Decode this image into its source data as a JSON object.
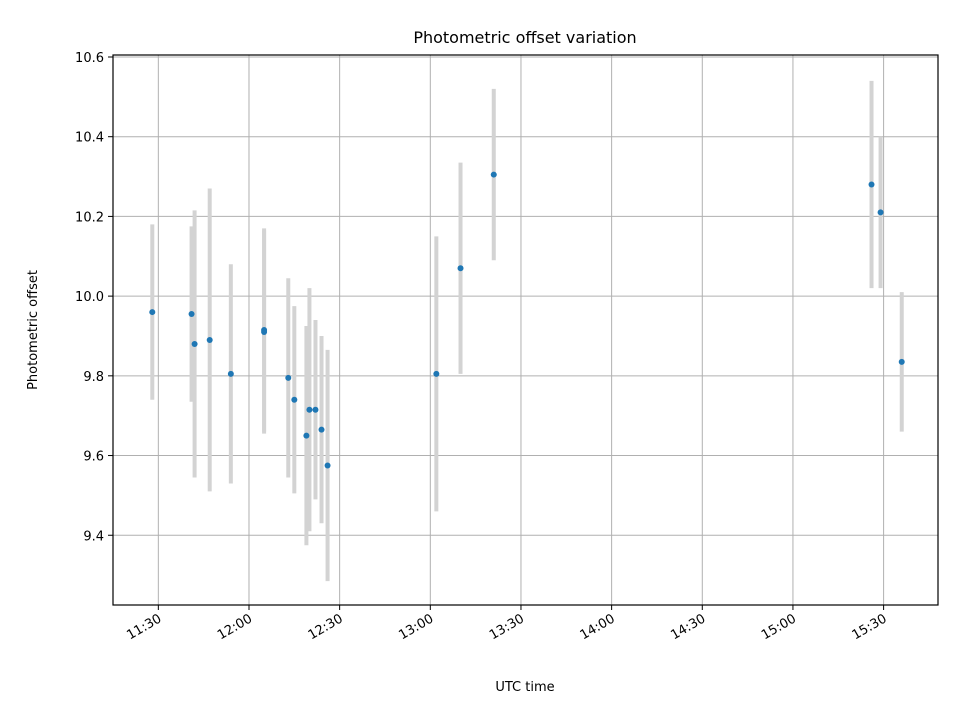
{
  "chart_data": {
    "type": "scatter",
    "title": "Photometric offset variation",
    "xlabel": "UTC time",
    "ylabel": "Photometric offset",
    "xlim": [
      "11:15",
      "15:48"
    ],
    "ylim": [
      9.225,
      10.605
    ],
    "x_ticks": [
      "11:30",
      "12:00",
      "12:30",
      "13:00",
      "13:30",
      "14:00",
      "14:30",
      "15:00",
      "15:30"
    ],
    "y_ticks": [
      "9.4",
      "9.6",
      "9.8",
      "10.0",
      "10.2",
      "10.4",
      "10.6"
    ],
    "grid": true,
    "errorbar_color": "#d3d3d3",
    "marker_color": "#1f77b4",
    "series": [
      {
        "points": [
          {
            "x": "11:28",
            "y": 9.96,
            "yerr": 0.22
          },
          {
            "x": "11:41",
            "y": 9.955,
            "yerr": 0.22
          },
          {
            "x": "11:42",
            "y": 9.88,
            "yerr": 0.335
          },
          {
            "x": "11:47",
            "y": 9.89,
            "yerr": 0.38
          },
          {
            "x": "11:54",
            "y": 9.805,
            "yerr": 0.275
          },
          {
            "x": "12:05",
            "y": 9.91,
            "yerr": 0.255
          },
          {
            "x": "12:05",
            "y": 9.915,
            "yerr": 0.255
          },
          {
            "x": "12:13",
            "y": 9.795,
            "yerr": 0.25
          },
          {
            "x": "12:15",
            "y": 9.74,
            "yerr": 0.235
          },
          {
            "x": "12:19",
            "y": 9.65,
            "yerr": 0.275
          },
          {
            "x": "12:20",
            "y": 9.715,
            "yerr": 0.305
          },
          {
            "x": "12:22",
            "y": 9.715,
            "yerr": 0.225
          },
          {
            "x": "12:24",
            "y": 9.665,
            "yerr": 0.235
          },
          {
            "x": "12:26",
            "y": 9.575,
            "yerr": 0.29
          },
          {
            "x": "13:02",
            "y": 9.805,
            "yerr": 0.345
          },
          {
            "x": "13:10",
            "y": 10.07,
            "yerr": 0.265
          },
          {
            "x": "13:21",
            "y": 10.305,
            "yerr": 0.215
          },
          {
            "x": "15:26",
            "y": 10.28,
            "yerr": 0.26
          },
          {
            "x": "15:29",
            "y": 10.21,
            "yerr": 0.19
          },
          {
            "x": "15:36",
            "y": 9.835,
            "yerr": 0.175
          }
        ]
      }
    ]
  }
}
